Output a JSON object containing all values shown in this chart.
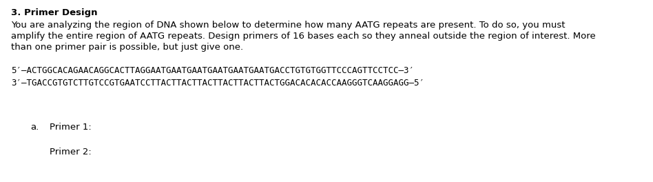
{
  "title": "3. Primer Design",
  "body_lines": [
    "You are analyzing the region of DNA shown below to determine how many AATG repeats are present. To do so, you must",
    "amplify the entire region of AATG repeats. Design primers of 16 bases each so they anneal outside the region of interest. More",
    "than one primer pair is possible, but just give one."
  ],
  "dna_line1": "5′–ACTGGCACAGAACAGGCACTTAGGAATGAATGAATGAATGAATGAATGACCTGTGTGGTTCCCAGTTCCTCC–3′",
  "dna_line2": "3′–TGACCGTGTCTTGTCCGTGAATCCTTACTTACTTACTTACTTACTTACTGGACACACACCAAGGGTCAAGGAGG–5′",
  "answer_label": "a.",
  "primer1_label": "Primer 1:",
  "primer2_label": "Primer 2:",
  "bg_color": "#ffffff",
  "text_color": "#000000",
  "title_fontsize": 9.5,
  "body_fontsize": 9.5,
  "dna_fontsize": 9.0,
  "answer_fontsize": 9.5
}
